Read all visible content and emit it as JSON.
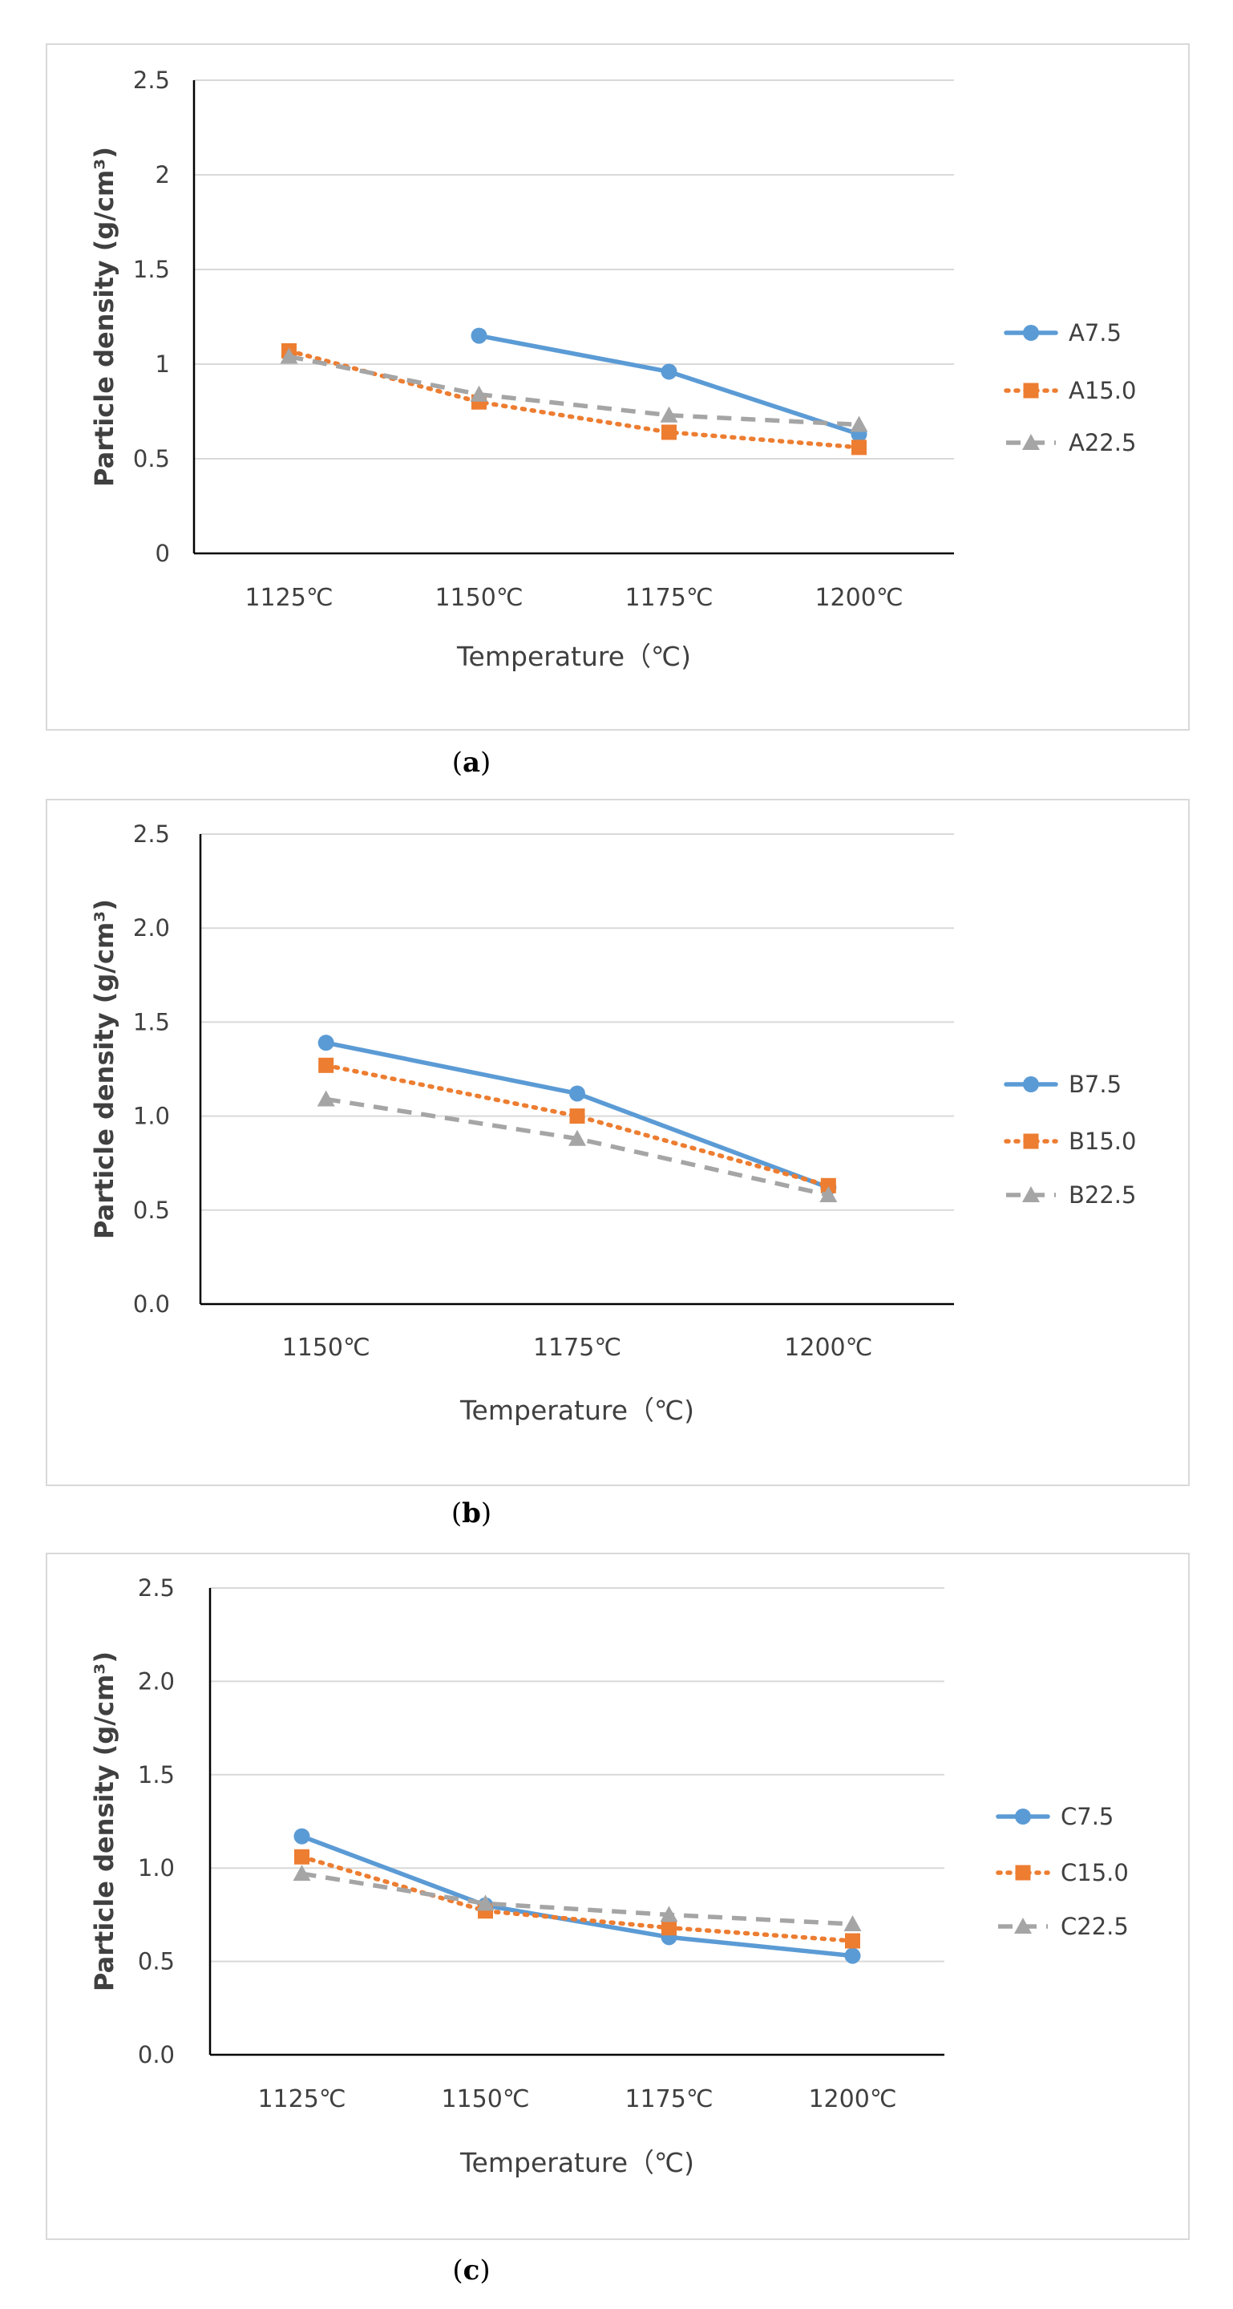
{
  "chart_data": [
    {
      "type": "line",
      "caption": "(a)",
      "caption_letter": "a",
      "categories": [
        "1125℃",
        "1150℃",
        "1175℃",
        "1200℃"
      ],
      "xlabel": "Temperature（℃)",
      "ylabel": "Particle density (g/cm³)",
      "ylim": [
        0,
        2.5
      ],
      "yticks": [
        "0",
        "0.5",
        "1",
        "1.5",
        "2",
        "2.5"
      ],
      "legend_position": "right",
      "series": [
        {
          "name": "A7.5",
          "values": [
            null,
            1.15,
            0.96,
            0.63
          ]
        },
        {
          "name": "A15.0",
          "values": [
            1.07,
            0.8,
            0.64,
            0.56
          ]
        },
        {
          "name": "A22.5",
          "values": [
            1.04,
            0.84,
            0.73,
            0.68
          ]
        }
      ]
    },
    {
      "type": "line",
      "caption": "(b)",
      "caption_letter": "b",
      "categories": [
        "1150℃",
        "1175℃",
        "1200℃"
      ],
      "xlabel": "Temperature（℃)",
      "ylabel": "Particle density (g/cm³)",
      "ylim": [
        0,
        2.5
      ],
      "yticks": [
        "0.0",
        "0.5",
        "1.0",
        "1.5",
        "2.0",
        "2.5"
      ],
      "legend_position": "right",
      "series": [
        {
          "name": "B7.5",
          "values": [
            1.39,
            1.12,
            0.62
          ]
        },
        {
          "name": "B15.0",
          "values": [
            1.27,
            1.0,
            0.63
          ]
        },
        {
          "name": "B22.5",
          "values": [
            1.09,
            0.88,
            0.58
          ]
        }
      ]
    },
    {
      "type": "line",
      "caption": "(c)",
      "caption_letter": "c",
      "categories": [
        "1125℃",
        "1150℃",
        "1175℃",
        "1200℃"
      ],
      "xlabel": "Temperature（℃)",
      "ylabel": "Particle density (g/cm³)",
      "ylim": [
        0,
        2.5
      ],
      "yticks": [
        "0.0",
        "0.5",
        "1.0",
        "1.5",
        "2.0",
        "2.5"
      ],
      "legend_position": "right",
      "series": [
        {
          "name": "C7.5",
          "values": [
            1.17,
            0.8,
            0.63,
            0.53
          ]
        },
        {
          "name": "C15.0",
          "values": [
            1.06,
            0.77,
            0.68,
            0.61
          ]
        },
        {
          "name": "C22.5",
          "values": [
            0.97,
            0.81,
            0.75,
            0.7
          ]
        }
      ]
    }
  ],
  "styles": {
    "series_colors": [
      "#5b9bd5",
      "#ed7d31",
      "#a5a5a5"
    ],
    "series_markers": [
      "circle-marker",
      "square-marker",
      "triangle-marker"
    ],
    "gridline_color": "#d9d9d9",
    "frame_color": "#d9d9d9"
  }
}
